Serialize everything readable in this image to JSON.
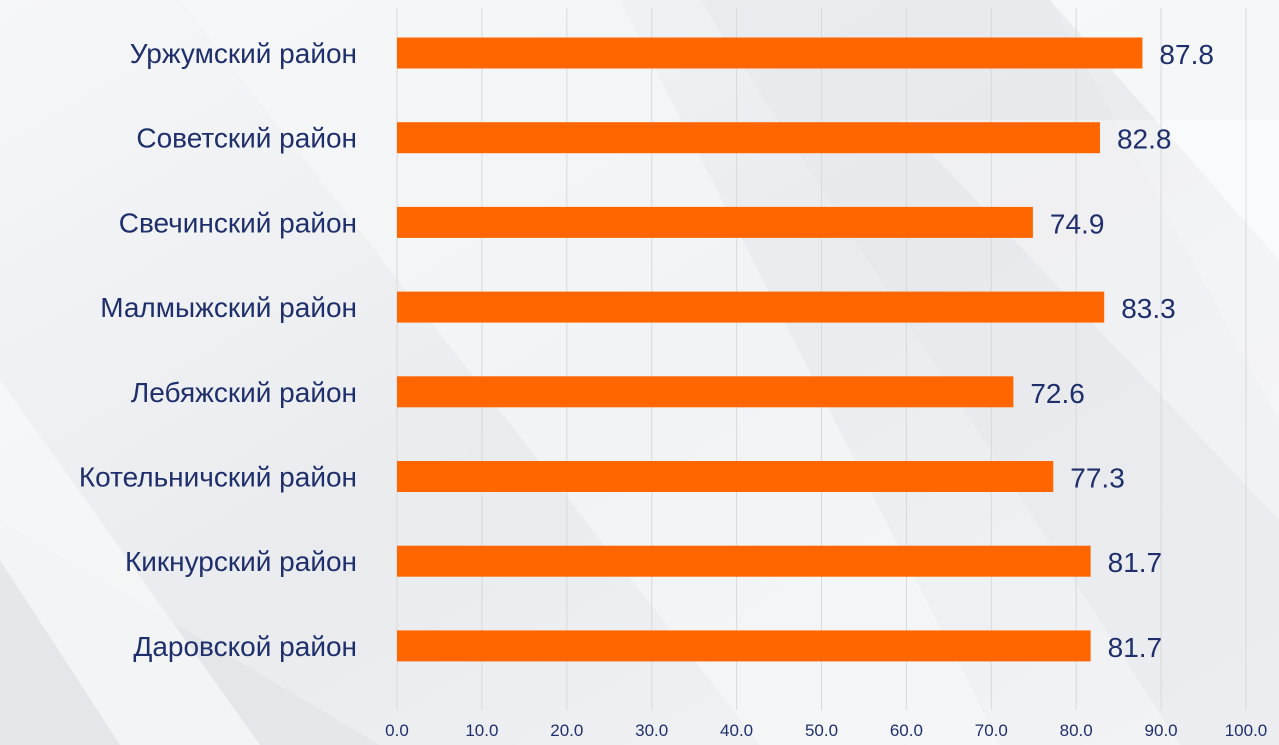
{
  "chart_data": {
    "type": "bar",
    "orientation": "horizontal",
    "categories": [
      "Уржумский район",
      "Советский район",
      "Свечинский район",
      "Малмыжский район",
      "Лебяжский район",
      "Котельничский район",
      "Кикнурский район",
      "Даровской район"
    ],
    "values": [
      87.8,
      82.8,
      74.9,
      83.3,
      72.6,
      77.3,
      81.7,
      81.7
    ],
    "value_labels": [
      "87.8",
      "82.8",
      "74.9",
      "83.3",
      "72.6",
      "77.3",
      "81.7",
      "81.7"
    ],
    "x_ticks": [
      "0.0",
      "10.0",
      "20.0",
      "30.0",
      "40.0",
      "50.0",
      "60.0",
      "70.0",
      "80.0",
      "90.0",
      "100.0"
    ],
    "xlim": [
      0,
      100
    ],
    "grid": "vertical",
    "legend": "none",
    "title": "",
    "xlabel": "",
    "ylabel": "",
    "colors": {
      "bar": "#ff6600",
      "category_label": "#1f2f6b",
      "value_label": "#1f2f6b",
      "tick_label": "#1f2f6b",
      "grid": "#d9d9d9"
    }
  }
}
